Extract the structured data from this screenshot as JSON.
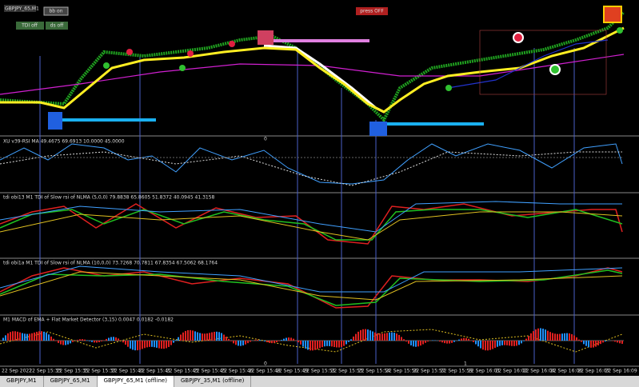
{
  "window": {
    "symbol": "GBPJPY_65,M1",
    "buttons": [
      "bb on",
      "TDI off",
      "ds off"
    ],
    "alert": "press OFF",
    "pane_labels": [
      "0",
      "0",
      "1"
    ],
    "indicators": [
      "XU v39-RSI MA 49.4675 69.6913 10.0000 45.0000",
      "tdi obi13 M1 TDI of Slow rsi of NLMA (5,0,0) 79.8838 65.8605 51.8372 40.0945 41.3158",
      "tdi obi1a M1 TDI of Slow rsi of NLMA (10,0,0) 73.7268 70.7811 67.8354 67.5062 68.1764",
      "M1 MACD of EMA + Flat Market Detector (3,15) 0.0047 0.0182 -0.0182"
    ],
    "time_axis": [
      "22 Sep 2022",
      "22 Sep 15:33",
      "22 Sep 15:35",
      "22 Sep 15:37",
      "22 Sep 15:40",
      "22 Sep 15:41",
      "22 Sep 15:43",
      "22 Sep 15:45",
      "22 Sep 15:46",
      "22 Sep 15:48",
      "22 Sep 15:49",
      "22 Sep 15:51",
      "22 Sep 15:53",
      "22 Sep 15:54",
      "22 Sep 15:56",
      "22 Sep 15:57",
      "22 Sep 15:59",
      "22 Sep 16:01",
      "22 Sep 16:02",
      "22 Sep 16:04",
      "22 Sep 16:06",
      "22 Sep 16:07",
      "22 Sep 16:09"
    ],
    "tabs": [
      "GBPJPY,M1",
      "GBPJPY_65,M1",
      "GBPJPY_65,M1 (offline)",
      "GBPJPY_35,M1 (offline)"
    ]
  }
}
